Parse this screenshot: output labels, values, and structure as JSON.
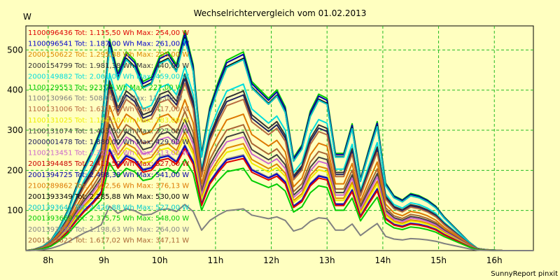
{
  "chart_data": {
    "type": "line",
    "title": "Wechselrichtervergleich vom 01.02.2013",
    "ylabel": "W",
    "xlabel": "",
    "footer": "SunnyReport pinxit",
    "ylim": [
      0,
      560
    ],
    "xlim": [
      7.6,
      16.7
    ],
    "yticks": [
      100,
      200,
      300,
      400,
      500
    ],
    "xticks": [
      {
        "v": 8,
        "label": "8h"
      },
      {
        "v": 9,
        "label": "9h"
      },
      {
        "v": 10,
        "label": "10h"
      },
      {
        "v": 11,
        "label": "11h"
      },
      {
        "v": 12,
        "label": "12h"
      },
      {
        "v": 13,
        "label": "13h"
      },
      {
        "v": 14,
        "label": "14h"
      },
      {
        "v": 15,
        "label": "15h"
      },
      {
        "v": 16,
        "label": "16h"
      }
    ],
    "grid": true,
    "legend_position": "top-left",
    "x": [
      7.6,
      7.75,
      7.9,
      8.05,
      8.2,
      8.35,
      8.5,
      8.65,
      8.8,
      8.95,
      9.1,
      9.25,
      9.4,
      9.55,
      9.7,
      9.85,
      10.0,
      10.15,
      10.3,
      10.45,
      10.6,
      10.75,
      10.9,
      11.05,
      11.2,
      11.35,
      11.5,
      11.65,
      11.8,
      11.95,
      12.1,
      12.25,
      12.4,
      12.55,
      12.7,
      12.85,
      13.0,
      13.15,
      13.3,
      13.45,
      13.6,
      13.75,
      13.9,
      14.05,
      14.2,
      14.35,
      14.5,
      14.65,
      14.8,
      14.95,
      15.1,
      15.25,
      15.4,
      15.55,
      15.7,
      15.85,
      16.0,
      16.15,
      16.3,
      16.45,
      16.6,
      16.7
    ],
    "base_profile": [
      0,
      3,
      10,
      25,
      55,
      95,
      150,
      200,
      240,
      290,
      500,
      420,
      470,
      450,
      400,
      410,
      460,
      470,
      440,
      520,
      440,
      230,
      340,
      400,
      450,
      460,
      470,
      400,
      380,
      360,
      380,
      340,
      220,
      250,
      330,
      370,
      360,
      230,
      230,
      300,
      170,
      240,
      305,
      160,
      130,
      120,
      135,
      130,
      120,
      105,
      80,
      60,
      40,
      20,
      5,
      2,
      1,
      0,
      0,
      0,
      0,
      0
    ],
    "series": [
      {
        "name": "1100096436 Tot: 1.115,50 Wh Max: 254,00 W",
        "color": "#dd0000",
        "peak": 254
      },
      {
        "name": "1100096541 Tot: 1.187,00 Wh Max: 261,00 W",
        "color": "#0000cc",
        "peak": 261
      },
      {
        "name": "2000150622 Tot: 1.295,88 Wh Max: 295,00 W",
        "color": "#dd8800",
        "peak": 295
      },
      {
        "name": "2000154799 Tot: 1.981,38 Wh Max: 440,00 W",
        "color": "#333333",
        "peak": 440
      },
      {
        "name": "2000149882 Tot: 2.061,00 Wh Max: 459,00 W",
        "color": "#00dddd",
        "peak": 459
      },
      {
        "name": "1100129553 Tot: 923,75 Wh Max: 227,00 W",
        "color": "#00cc00",
        "peak": 227
      },
      {
        "name": "1100130966 Tot: 508,00 Wh Max: 115,00 W",
        "color": "#808080",
        "peak": 115
      },
      {
        "name": "1100131006 Tot: 1.621,75 Wh Max: 417,00 W",
        "color": "#b86b40",
        "peak": 417
      },
      {
        "name": "1100131025 Tot: 1.194,50 Wh Max: 283,00 W",
        "color": "#eeee00",
        "peak": 283
      },
      {
        "name": "1100131074 Tot: 1.403,50 Wh Max: 327,00 W",
        "color": "#404040",
        "peak": 327
      },
      {
        "name": "2000001478 Tot: 1.880,00 Wh Max: 429,00 W",
        "color": "#202060",
        "peak": 429
      },
      {
        "name": "1100213451 Tot: 1.320,50 Wh Max: 313,00 W",
        "color": "#cc66cc",
        "peak": 313
      },
      {
        "name": "2001394485 Tot: 2.413,50 Wh Max: 527,00 W",
        "color": "#cc0000",
        "peak": 527
      },
      {
        "name": "2001394725 Tot: 2.498,38 Wh Max: 541,00 W",
        "color": "#0000aa",
        "peak": 541
      },
      {
        "name": "2100289862 Tot: 1.702,56 Wh Max: 376,13 W",
        "color": "#dd7700",
        "peak": 376.13
      },
      {
        "name": "2001393349 Tot: 2.285,88 Wh Max: 530,00 W",
        "color": "#000000",
        "peak": 530
      },
      {
        "name": "2001393641 Tot: 2.426,88 Wh Max: 527,00 W",
        "color": "#00cccc",
        "peak": 527
      },
      {
        "name": "2001393669 Tot: 2.375,75 Wh Max: 548,00 W",
        "color": "#00cc00",
        "peak": 548
      },
      {
        "name": "2001393658 Tot: 1.198,63 Wh Max: 264,00 W",
        "color": "#888888",
        "peak": 264
      },
      {
        "name": "2001393622 Tot: 1.617,02 Wh Max: 347,11 W",
        "color": "#aa6633",
        "peak": 347.11
      }
    ]
  }
}
